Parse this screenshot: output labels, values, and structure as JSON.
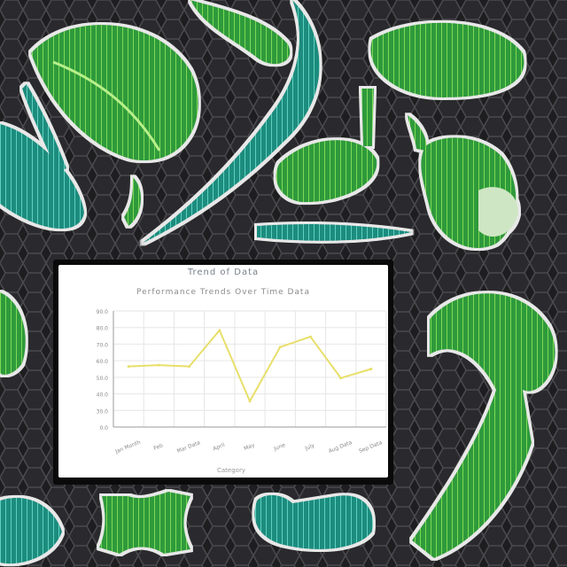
{
  "colors": {
    "background": "#1c1c1e",
    "leaf_green": "#3aa63a",
    "leaf_light": "#7fe05a",
    "leaf_teal": "#1f9a8a",
    "line": "#e8df6a",
    "grid": "#e6e6e6"
  },
  "chart_data": {
    "type": "line",
    "title": "Trend of Data",
    "subtitle": "Performance Trends Over Time Data",
    "xlabel": "Category",
    "ylabel": "",
    "categories": [
      "Jan Month",
      "Feb",
      "Mar Data",
      "April",
      "May",
      "June",
      "July",
      "Aug Data",
      "Sep Data"
    ],
    "y_ticks": [
      "90.0",
      "80.0",
      "70.0",
      "60.0",
      "50.0",
      "40.0",
      "30.0",
      "0.0"
    ],
    "ylim": [
      0,
      90
    ],
    "grid": true,
    "series": [
      {
        "values": [
          47,
          48,
          47,
          75,
          20,
          62,
          70,
          38,
          45
        ]
      }
    ]
  }
}
